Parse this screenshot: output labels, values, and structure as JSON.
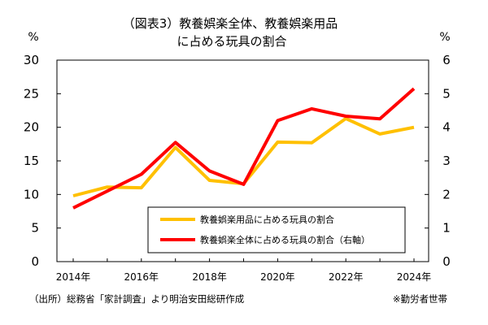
{
  "chart_data": {
    "type": "line",
    "title": [
      "（図表3）教養娯楽全体、教養娯楽用品",
      "に占める玩具の割合"
    ],
    "x": [
      2014,
      2015,
      2016,
      2017,
      2018,
      2019,
      2020,
      2021,
      2022,
      2023,
      2024
    ],
    "xticks": [
      "2014年",
      "2016年",
      "2018年",
      "2020年",
      "2022年",
      "2024年"
    ],
    "xtick_values": [
      2014,
      2016,
      2018,
      2020,
      2022,
      2024
    ],
    "left_axis": {
      "unit": "%",
      "ylim": [
        0,
        30
      ],
      "ticks": [
        "0",
        "5",
        "10",
        "15",
        "20",
        "25",
        "30"
      ]
    },
    "right_axis": {
      "unit": "%",
      "ylim": [
        0,
        6
      ],
      "ticks": [
        "0",
        "1",
        "2",
        "3",
        "4",
        "5",
        "6"
      ]
    },
    "series": [
      {
        "name": "教養娯楽用品に占める玩具の割合",
        "axis": "left",
        "color": "#FFC000",
        "values": [
          9.8,
          11.1,
          11.0,
          17.0,
          12.1,
          11.6,
          17.8,
          17.7,
          21.3,
          19.0,
          20.0
        ]
      },
      {
        "name": "教養娯楽全体に占める玩具の割合（右軸）",
        "axis": "right",
        "color": "#FF0000",
        "values": [
          1.6,
          2.1,
          2.6,
          3.55,
          2.7,
          2.3,
          4.2,
          4.55,
          4.33,
          4.25,
          5.15
        ]
      }
    ],
    "grid": false,
    "legend": "center-right",
    "source": "（出所）総務省「家計調査」より明治安田総研作成",
    "footnote": "※勤労者世帯"
  }
}
